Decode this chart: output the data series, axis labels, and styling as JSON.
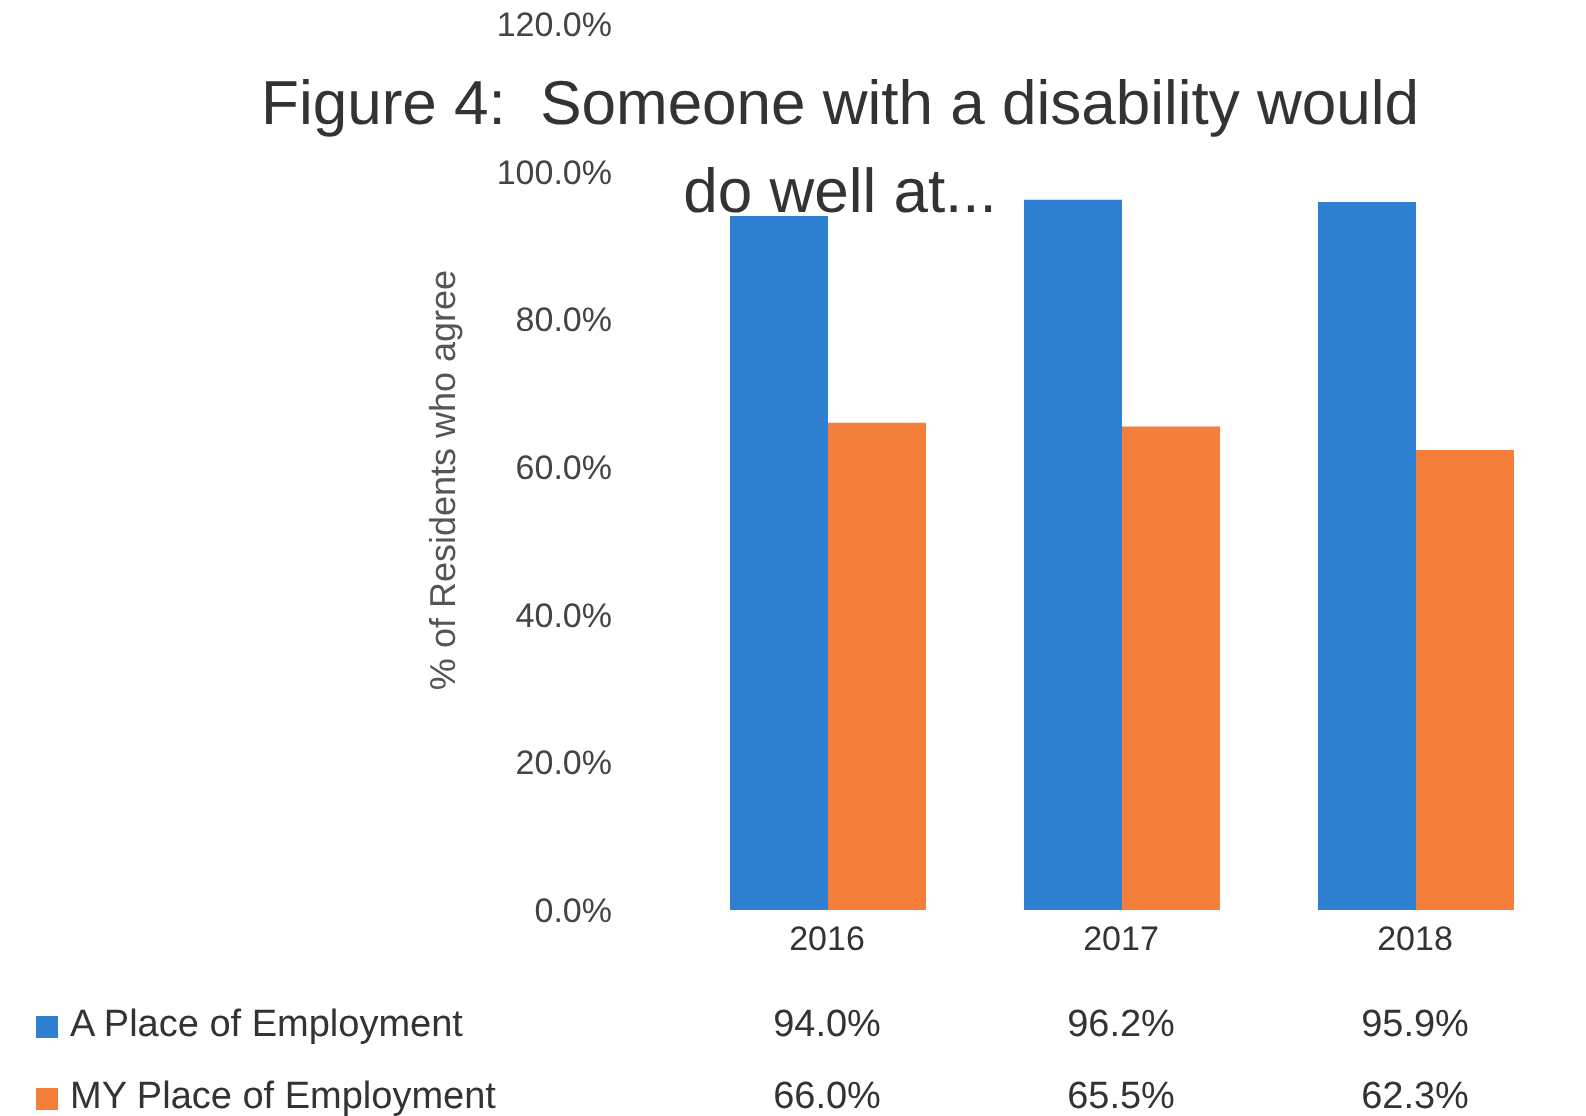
{
  "chart_data": {
    "type": "bar",
    "title": "Figure 4:  Someone with a disability would do well at...",
    "ylabel": "% of Residents who agree",
    "categories": [
      "2016",
      "2017",
      "2018"
    ],
    "series": [
      {
        "name": "A Place of Employment",
        "color": "#2e7fd0",
        "values": [
          94.0,
          96.2,
          95.9
        ],
        "value_labels": [
          "94.0%",
          "96.2%",
          "95.9%"
        ]
      },
      {
        "name": "MY Place of Employment",
        "color": "#f47f3a",
        "values": [
          66.0,
          65.5,
          62.3
        ],
        "value_labels": [
          "66.0%",
          "65.5%",
          "62.3%"
        ]
      }
    ],
    "ylim": [
      0,
      120
    ],
    "yticks": [
      {
        "value": 0,
        "label": "0.0%"
      },
      {
        "value": 20,
        "label": "20.0%"
      },
      {
        "value": 40,
        "label": "40.0%"
      },
      {
        "value": 60,
        "label": "60.0%"
      },
      {
        "value": 80,
        "label": "80.0%"
      },
      {
        "value": 100,
        "label": "100.0%"
      },
      {
        "value": 120,
        "label": "120.0%"
      }
    ],
    "grid": false,
    "legend": "bottom"
  }
}
